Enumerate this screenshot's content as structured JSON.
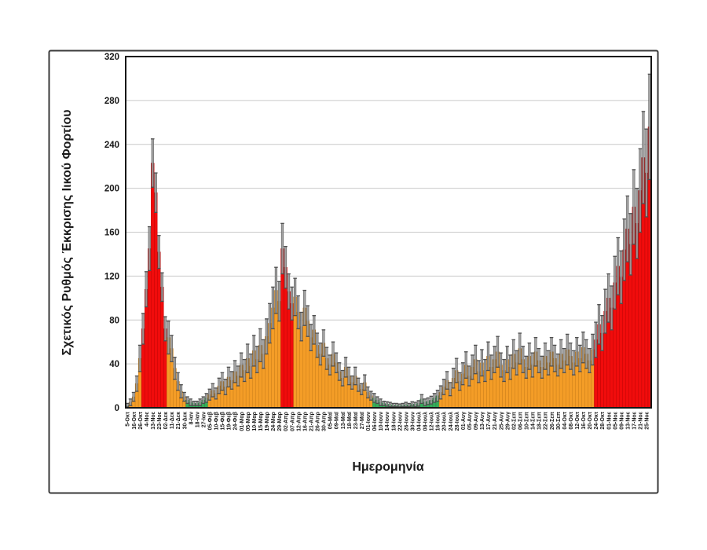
{
  "page": {
    "background": "#ffffff"
  },
  "chart_data": {
    "type": "bar",
    "title": "",
    "xlabel": "Ημερομηνία",
    "ylabel": "Σχετικός Ρυθμός Έκκρισης Ιικού Φορτίου",
    "ylim": [
      0,
      320
    ],
    "y_ticks": [
      0,
      40,
      80,
      120,
      160,
      200,
      240,
      280,
      320
    ],
    "grid": true,
    "legend": false,
    "error_bars": true,
    "x_tick_every_n_bars": 2,
    "x_tick_labels": [
      "5-Οκτ",
      "16-Οκτ",
      "26-Οκτ",
      "4-Νοε",
      "13-Νοε",
      "23-Νοε",
      "02-Δεκ",
      "11-Δεκ",
      "21-Δεκ",
      "30-Δεκ",
      "8-Ιαν",
      "18-Ιαν",
      "27-Ιαν",
      "05-Φεβ",
      "10-Φεβ",
      "15-Φεβ",
      "19-Φεβ",
      "24-Φεβ",
      "01-Μαρ",
      "05-Μαρ",
      "10-Μαρ",
      "15-Μαρ",
      "19-Μαρ",
      "24-Μαρ",
      "29-Μαρ",
      "02-Απρ",
      "07-Απρ",
      "12-Απρ",
      "16-Απρ",
      "21-Απρ",
      "26-Απρ",
      "30-Απρ",
      "05-Μαϊ",
      "09-Μαϊ",
      "13-Μαϊ",
      "18-Μαϊ",
      "23-Μαϊ",
      "27-Μαϊ",
      "01-Ιουν",
      "06-Ιουν",
      "10-Ιουν",
      "14-Ιουν",
      "18-Ιουν",
      "22-Ιουν",
      "26-Ιουν",
      "30-Ιουν",
      "04-Ιουλ",
      "08-Ιουλ",
      "12-Ιουλ",
      "16-Ιουλ",
      "20-Ιουλ",
      "24-Ιουλ",
      "28-Ιουλ",
      "01-Αυγ",
      "05-Αυγ",
      "09-Αυγ",
      "13-Αυγ",
      "17-Αυγ",
      "21-Αυγ",
      "25-Αυγ",
      "29-Αυγ",
      "02-Σεπ",
      "06-Σεπ",
      "10-Σεπ",
      "14-Σεπ",
      "18-Σεπ",
      "22-Σεπ",
      "26-Σεπ",
      "30-Σεπ",
      "04-Οκτ",
      "08-Οκτ",
      "12-Οκτ",
      "16-Οκτ",
      "20-Οκτ",
      "24-Οκτ",
      "28-Οκτ",
      "01-Νοε",
      "05-Νοε",
      "09-Νοε",
      "13-Νοε",
      "17-Νοε",
      "21-Νοε",
      "25-Νοε"
    ],
    "bars": {
      "values": [
        2,
        5,
        10,
        22,
        45,
        72,
        108,
        145,
        223,
        196,
        142,
        110,
        72,
        64,
        54,
        36,
        24,
        15,
        10,
        7,
        5,
        4,
        4,
        5,
        7,
        9,
        12,
        16,
        13,
        20,
        24,
        19,
        28,
        25,
        33,
        29,
        39,
        34,
        45,
        38,
        52,
        44,
        57,
        49,
        65,
        77,
        91,
        107,
        97,
        145,
        128,
        106,
        95,
        101,
        87,
        74,
        91,
        79,
        64,
        71,
        57,
        49,
        59,
        45,
        39,
        49,
        41,
        33,
        27,
        37,
        29,
        23,
        29,
        21,
        17,
        23,
        14,
        11,
        9,
        7,
        5,
        4,
        3.5,
        3,
        2.5,
        2.5,
        2,
        2.5,
        3,
        2.5,
        3.5,
        3,
        4,
        8,
        5,
        6,
        7,
        9,
        11,
        14,
        19,
        25,
        17,
        27,
        34,
        24,
        31,
        39,
        29,
        37,
        44,
        33,
        41,
        34,
        47,
        37,
        44,
        51,
        39,
        34,
        44,
        37,
        49,
        41,
        54,
        44,
        37,
        47,
        39,
        51,
        43,
        37,
        47,
        41,
        51,
        45,
        39,
        49,
        43,
        53,
        47,
        41,
        51,
        45,
        55,
        49,
        43,
        53,
        62,
        76,
        68,
        88,
        100,
        91,
        114,
        129,
        119,
        144,
        163,
        149,
        183,
        168,
        198,
        228,
        214,
        256
      ],
      "errors": [
        2,
        3,
        4,
        7,
        12,
        14,
        16,
        20,
        22,
        18,
        15,
        13,
        11,
        15,
        12,
        10,
        8,
        6,
        4,
        3,
        3,
        2,
        2,
        3,
        3,
        4,
        5,
        6,
        5,
        7,
        8,
        7,
        9,
        8,
        10,
        9,
        11,
        10,
        13,
        11,
        14,
        12,
        15,
        13,
        16,
        18,
        19,
        21,
        18,
        23,
        19,
        16,
        15,
        17,
        15,
        13,
        16,
        14,
        12,
        13,
        11,
        10,
        12,
        10,
        9,
        11,
        9,
        8,
        7,
        9,
        8,
        6,
        8,
        6,
        5,
        7,
        5,
        4,
        4,
        3,
        3,
        2,
        2,
        2,
        1.5,
        1.5,
        1.5,
        1.5,
        2,
        1.5,
        2,
        2,
        2.5,
        4,
        3,
        3,
        3.5,
        4,
        5,
        6,
        7,
        8,
        6,
        9,
        11,
        8,
        10,
        12,
        9,
        11,
        13,
        10,
        12,
        10,
        13,
        11,
        12,
        14,
        11,
        10,
        12,
        11,
        13,
        11,
        14,
        12,
        10,
        12,
        11,
        13,
        11,
        10,
        12,
        11,
        13,
        12,
        10,
        13,
        11,
        14,
        12,
        11,
        13,
        12,
        14,
        13,
        11,
        14,
        16,
        18,
        16,
        20,
        22,
        20,
        24,
        26,
        24,
        28,
        30,
        28,
        34,
        32,
        38,
        42,
        40,
        48
      ],
      "color_segments": [
        {
          "from": 0,
          "to": 0,
          "color": "green"
        },
        {
          "from": 1,
          "to": 4,
          "color": "orange"
        },
        {
          "from": 5,
          "to": 12,
          "color": "red"
        },
        {
          "from": 13,
          "to": 18,
          "color": "orange"
        },
        {
          "from": 19,
          "to": 25,
          "color": "green"
        },
        {
          "from": 26,
          "to": 48,
          "color": "orange"
        },
        {
          "from": 49,
          "to": 52,
          "color": "red"
        },
        {
          "from": 53,
          "to": 77,
          "color": "orange"
        },
        {
          "from": 78,
          "to": 98,
          "color": "green"
        },
        {
          "from": 99,
          "to": 147,
          "color": "orange"
        },
        {
          "from": 148,
          "to": 165,
          "color": "red"
        }
      ]
    },
    "palette": {
      "red": "#F10C0C",
      "red_edge": "#B50000",
      "orange": "#F49D27",
      "orange_edge": "#C07715",
      "green": "#36AD5A",
      "green_edge": "#23803F",
      "error_bar_fill": "#9C9C9C",
      "error_bar_edge": "#4F4F4F",
      "grid": "#C9C9C9",
      "frame": "#161616",
      "outer_border": "#3A3A3A",
      "tick_text": "#1A1A1A"
    }
  }
}
